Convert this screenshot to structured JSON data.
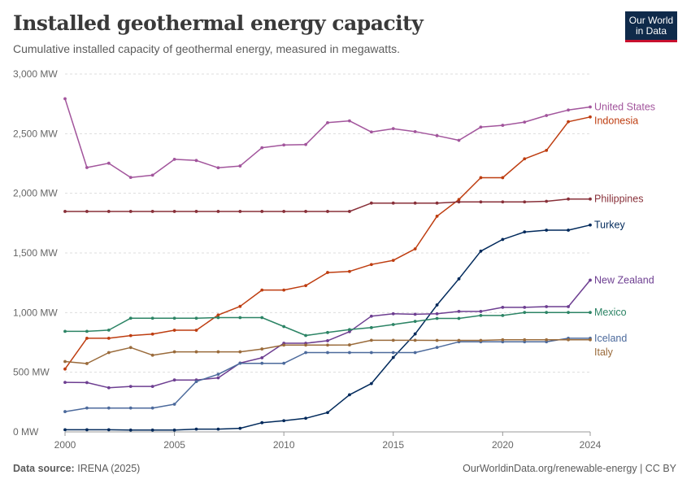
{
  "header": {
    "title": "Installed geothermal energy capacity",
    "subtitle": "Cumulative installed capacity of geothermal energy, measured in megawatts.",
    "logo_line1": "Our World",
    "logo_line2": "in Data"
  },
  "footer": {
    "source_label": "Data source:",
    "source_value": "IRENA (2025)",
    "link": "OurWorldinData.org/renewable-energy | CC BY"
  },
  "chart_data": {
    "type": "line",
    "xlabel": "",
    "ylabel": "",
    "xlim": [
      2000,
      2024
    ],
    "ylim": [
      0,
      3000
    ],
    "x_ticks": [
      2000,
      2005,
      2010,
      2015,
      2020,
      2024
    ],
    "y_ticks": [
      0,
      500,
      1000,
      1500,
      2000,
      2500,
      3000
    ],
    "y_tick_labels": [
      "0 MW",
      "500 MW",
      "1,000 MW",
      "1,500 MW",
      "2,000 MW",
      "2,500 MW",
      "3,000 MW"
    ],
    "grid": "horizontal dashed",
    "legend": "labels at line ends (right)",
    "x": [
      2000,
      2001,
      2002,
      2003,
      2004,
      2005,
      2006,
      2007,
      2008,
      2009,
      2010,
      2011,
      2012,
      2013,
      2014,
      2015,
      2016,
      2017,
      2018,
      2019,
      2020,
      2021,
      2022,
      2023,
      2024
    ],
    "series": [
      {
        "name": "United States",
        "color": "#a2559c",
        "values": [
          2793,
          2216,
          2252,
          2133,
          2152,
          2285,
          2275,
          2214,
          2229,
          2382,
          2405,
          2409,
          2592,
          2607,
          2514,
          2542,
          2517,
          2483,
          2444,
          2555,
          2570,
          2597,
          2652,
          2698,
          2724
        ]
      },
      {
        "name": "Indonesia",
        "color": "#be3d10",
        "values": [
          527,
          785,
          785,
          807,
          820,
          852,
          852,
          980,
          1052,
          1189,
          1189,
          1226,
          1336,
          1345,
          1403,
          1438,
          1534,
          1808,
          1948,
          2131,
          2131,
          2289,
          2360,
          2600,
          2640
        ]
      },
      {
        "name": "Philippines",
        "color": "#883039",
        "values": [
          1848,
          1848,
          1848,
          1848,
          1848,
          1848,
          1848,
          1848,
          1848,
          1848,
          1848,
          1848,
          1848,
          1848,
          1918,
          1918,
          1918,
          1918,
          1928,
          1928,
          1928,
          1928,
          1933,
          1952,
          1952
        ]
      },
      {
        "name": "Turkey",
        "color": "#00295b",
        "values": [
          18,
          18,
          18,
          15,
          15,
          15,
          23,
          23,
          30,
          77,
          94,
          114,
          162,
          311,
          405,
          624,
          821,
          1064,
          1283,
          1515,
          1613,
          1676,
          1691,
          1691,
          1734
        ]
      },
      {
        "name": "New Zealand",
        "color": "#6d3e91",
        "values": [
          415,
          413,
          370,
          381,
          381,
          435,
          435,
          453,
          577,
          621,
          743,
          743,
          764,
          840,
          970,
          990,
          986,
          990,
          1010,
          1010,
          1044,
          1044,
          1050,
          1050,
          1272
        ]
      },
      {
        "name": "Mexico",
        "color": "#2c8465",
        "values": [
          843,
          843,
          853,
          953,
          953,
          953,
          953,
          958,
          958,
          958,
          883,
          808,
          833,
          857,
          874,
          900,
          926,
          951,
          951,
          976,
          976,
          1001,
          1001,
          1001,
          1001
        ]
      },
      {
        "name": "Iceland",
        "color": "#4c6a9c",
        "values": [
          170,
          200,
          200,
          200,
          200,
          232,
          422,
          483,
          575,
          575,
          575,
          665,
          665,
          665,
          665,
          665,
          665,
          708,
          755,
          755,
          755,
          755,
          755,
          785,
          785
        ]
      },
      {
        "name": "Italy",
        "color": "#9a6b3b",
        "values": [
          590,
          573,
          665,
          707,
          643,
          671,
          671,
          671,
          671,
          695,
          728,
          728,
          728,
          729,
          768,
          768,
          768,
          767,
          767,
          767,
          772,
          772,
          772,
          772,
          772
        ]
      }
    ]
  }
}
